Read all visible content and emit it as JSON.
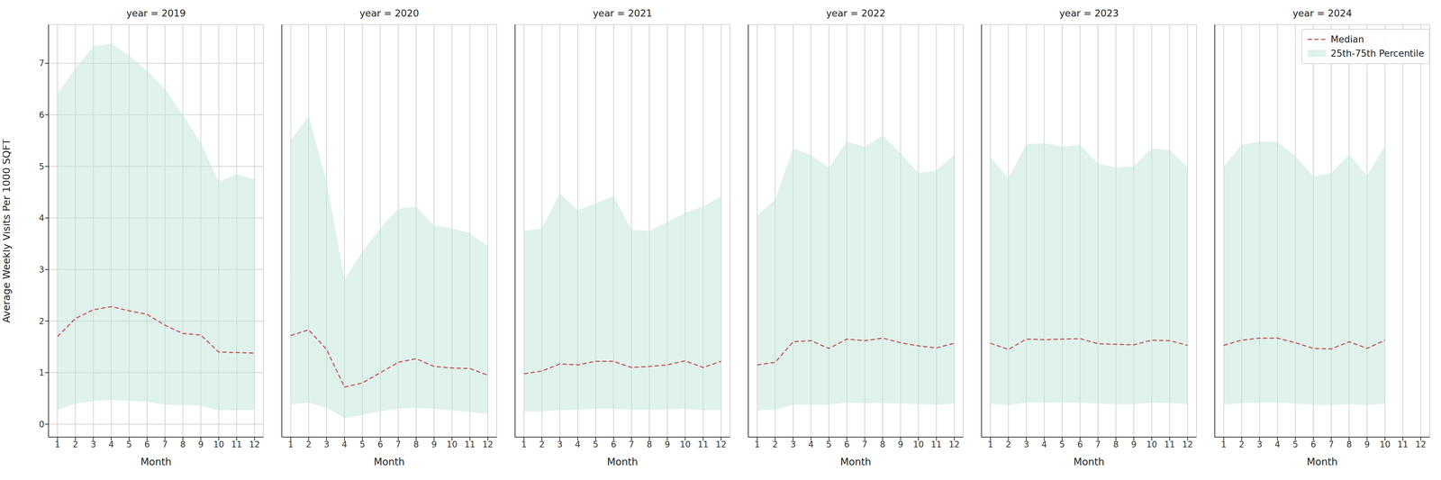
{
  "chart_data": [
    {
      "type": "line",
      "title": "year = 2019",
      "xlabel": "Month",
      "ylabel": "Average Weekly Visits Per 1000 SQFT",
      "x": [
        1,
        2,
        3,
        4,
        5,
        6,
        7,
        8,
        9,
        10,
        11,
        12
      ],
      "xlim": [
        0.5,
        12.5
      ],
      "xticks": [
        1,
        2,
        3,
        4,
        5,
        6,
        7,
        8,
        9,
        10,
        11,
        12
      ],
      "ylim": [
        -0.25,
        7.75
      ],
      "yticks": [
        0,
        1,
        2,
        3,
        4,
        5,
        6,
        7
      ],
      "grid": true,
      "series": [
        {
          "name": "25th-75th Percentile",
          "type": "band",
          "color": "#bfe6d8",
          "low": [
            0.28,
            0.4,
            0.45,
            0.47,
            0.45,
            0.44,
            0.38,
            0.37,
            0.36,
            0.27,
            0.27,
            0.28
          ],
          "high": [
            6.4,
            6.9,
            7.33,
            7.38,
            7.15,
            6.85,
            6.5,
            6.0,
            5.45,
            4.7,
            4.85,
            4.75
          ]
        },
        {
          "name": "Median",
          "type": "line",
          "color": "#c44e52",
          "line_style": "dashed",
          "values": [
            1.7,
            2.05,
            2.22,
            2.28,
            2.2,
            2.13,
            1.92,
            1.76,
            1.73,
            1.4,
            1.39,
            1.38
          ]
        }
      ]
    },
    {
      "type": "line",
      "title": "year = 2020",
      "xlabel": "Month",
      "x": [
        1,
        2,
        3,
        4,
        5,
        6,
        7,
        8,
        9,
        10,
        11,
        12
      ],
      "xlim": [
        0.5,
        12.5
      ],
      "xticks": [
        1,
        2,
        3,
        4,
        5,
        6,
        7,
        8,
        9,
        10,
        11,
        12
      ],
      "ylim": [
        -0.25,
        7.75
      ],
      "yticks": [
        0,
        1,
        2,
        3,
        4,
        5,
        6,
        7
      ],
      "grid": true,
      "tick_labels": "x",
      "series": [
        {
          "name": "25th-75th Percentile",
          "type": "band",
          "color": "#bfe6d8",
          "low": [
            0.38,
            0.42,
            0.32,
            0.12,
            0.18,
            0.25,
            0.3,
            0.32,
            0.3,
            0.27,
            0.24,
            0.2
          ],
          "high": [
            5.5,
            5.98,
            4.7,
            2.8,
            3.35,
            3.8,
            4.18,
            4.22,
            3.85,
            3.8,
            3.7,
            3.45
          ]
        },
        {
          "name": "Median",
          "type": "line",
          "color": "#c44e52",
          "line_style": "dashed",
          "values": [
            1.72,
            1.83,
            1.45,
            0.72,
            0.8,
            1.0,
            1.2,
            1.27,
            1.12,
            1.09,
            1.08,
            0.95
          ]
        }
      ]
    },
    {
      "type": "line",
      "title": "year = 2021",
      "xlabel": "Month",
      "x": [
        1,
        2,
        3,
        4,
        5,
        6,
        7,
        8,
        9,
        10,
        11,
        12
      ],
      "xlim": [
        0.5,
        12.5
      ],
      "xticks": [
        1,
        2,
        3,
        4,
        5,
        6,
        7,
        8,
        9,
        10,
        11,
        12
      ],
      "ylim": [
        -0.25,
        7.75
      ],
      "yticks": [
        0,
        1,
        2,
        3,
        4,
        5,
        6,
        7
      ],
      "grid": true,
      "tick_labels": "x",
      "series": [
        {
          "name": "25th-75th Percentile",
          "type": "band",
          "color": "#bfe6d8",
          "low": [
            0.25,
            0.25,
            0.27,
            0.28,
            0.3,
            0.3,
            0.28,
            0.28,
            0.29,
            0.3,
            0.27,
            0.27
          ],
          "high": [
            3.75,
            3.8,
            4.48,
            4.15,
            4.28,
            4.43,
            3.77,
            3.75,
            3.92,
            4.1,
            4.22,
            4.42
          ]
        },
        {
          "name": "Median",
          "type": "line",
          "color": "#c44e52",
          "line_style": "dashed",
          "values": [
            0.98,
            1.03,
            1.17,
            1.15,
            1.22,
            1.22,
            1.1,
            1.12,
            1.15,
            1.23,
            1.1,
            1.22
          ]
        }
      ]
    },
    {
      "type": "line",
      "title": "year = 2022",
      "xlabel": "Month",
      "x": [
        1,
        2,
        3,
        4,
        5,
        6,
        7,
        8,
        9,
        10,
        11,
        12
      ],
      "xlim": [
        0.5,
        12.5
      ],
      "xticks": [
        1,
        2,
        3,
        4,
        5,
        6,
        7,
        8,
        9,
        10,
        11,
        12
      ],
      "ylim": [
        -0.25,
        7.75
      ],
      "yticks": [
        0,
        1,
        2,
        3,
        4,
        5,
        6,
        7
      ],
      "grid": true,
      "tick_labels": "x",
      "series": [
        {
          "name": "25th-75th Percentile",
          "type": "band",
          "color": "#bfe6d8",
          "low": [
            0.27,
            0.28,
            0.38,
            0.38,
            0.38,
            0.42,
            0.41,
            0.41,
            0.4,
            0.39,
            0.38,
            0.4
          ],
          "high": [
            4.05,
            4.35,
            5.35,
            5.22,
            4.98,
            5.48,
            5.38,
            5.6,
            5.25,
            4.87,
            4.92,
            5.22
          ]
        },
        {
          "name": "Median",
          "type": "line",
          "color": "#c44e52",
          "line_style": "dashed",
          "values": [
            1.15,
            1.2,
            1.6,
            1.62,
            1.47,
            1.65,
            1.62,
            1.67,
            1.58,
            1.52,
            1.48,
            1.57
          ]
        }
      ]
    },
    {
      "type": "line",
      "title": "year = 2023",
      "xlabel": "Month",
      "x": [
        1,
        2,
        3,
        4,
        5,
        6,
        7,
        8,
        9,
        10,
        11,
        12
      ],
      "xlim": [
        0.5,
        12.5
      ],
      "xticks": [
        1,
        2,
        3,
        4,
        5,
        6,
        7,
        8,
        9,
        10,
        11,
        12
      ],
      "ylim": [
        -0.25,
        7.75
      ],
      "yticks": [
        0,
        1,
        2,
        3,
        4,
        5,
        6,
        7
      ],
      "grid": true,
      "tick_labels": "x",
      "series": [
        {
          "name": "25th-75th Percentile",
          "type": "band",
          "color": "#bfe6d8",
          "low": [
            0.4,
            0.37,
            0.42,
            0.42,
            0.42,
            0.42,
            0.4,
            0.39,
            0.39,
            0.42,
            0.41,
            0.39
          ],
          "high": [
            5.18,
            4.77,
            5.43,
            5.45,
            5.38,
            5.42,
            5.05,
            4.98,
            5.0,
            5.35,
            5.32,
            4.98
          ]
        },
        {
          "name": "Median",
          "type": "line",
          "color": "#c44e52",
          "line_style": "dashed",
          "values": [
            1.57,
            1.45,
            1.65,
            1.64,
            1.65,
            1.66,
            1.56,
            1.55,
            1.54,
            1.63,
            1.62,
            1.53
          ]
        }
      ]
    },
    {
      "type": "line",
      "title": "year = 2024",
      "xlabel": "Month",
      "x": [
        1,
        2,
        3,
        4,
        5,
        6,
        7,
        8,
        9,
        10
      ],
      "xlim": [
        0.5,
        12.5
      ],
      "xticks": [
        1,
        2,
        3,
        4,
        5,
        6,
        7,
        8,
        9,
        10,
        11,
        12
      ],
      "ylim": [
        -0.25,
        7.75
      ],
      "yticks": [
        0,
        1,
        2,
        3,
        4,
        5,
        6,
        7
      ],
      "grid": true,
      "tick_labels": "x",
      "legend": "upper right",
      "series": [
        {
          "name": "25th-75th Percentile",
          "type": "band",
          "color": "#bfe6d8",
          "low": [
            0.38,
            0.41,
            0.42,
            0.42,
            0.4,
            0.38,
            0.37,
            0.39,
            0.37,
            0.4
          ],
          "high": [
            5.0,
            5.42,
            5.48,
            5.47,
            5.2,
            4.8,
            4.87,
            5.23,
            4.82,
            5.4
          ]
        },
        {
          "name": "Median",
          "type": "line",
          "color": "#c44e52",
          "line_style": "dashed",
          "values": [
            1.53,
            1.63,
            1.67,
            1.67,
            1.58,
            1.47,
            1.46,
            1.6,
            1.47,
            1.63
          ]
        }
      ]
    }
  ]
}
